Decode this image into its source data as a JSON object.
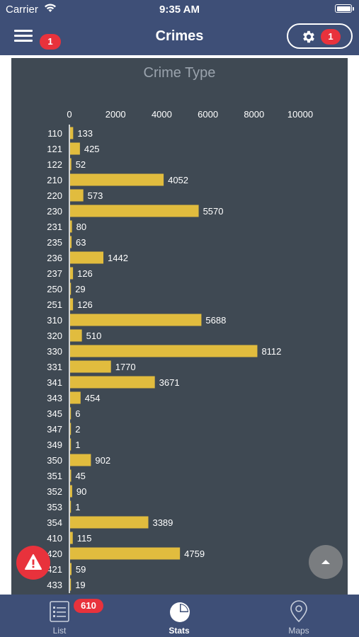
{
  "status_bar": {
    "carrier": "Carrier",
    "time": "9:35 AM"
  },
  "nav": {
    "title": "Crimes",
    "menu_badge": "1",
    "settings_badge": "1"
  },
  "icons": {
    "menu": "hamburger-menu-icon",
    "settings": "gear-icon",
    "alert": "warning-triangle-icon",
    "scroll_up": "chevron-up-icon",
    "list": "list-icon",
    "stats": "pie-chart-icon",
    "maps": "map-pin-icon"
  },
  "colors": {
    "nav_bg": "#3e4f77",
    "chart_bg": "#3f4953",
    "bar": "#e1bc3e",
    "badge": "#e8323c"
  },
  "chart_data": {
    "type": "bar",
    "orientation": "horizontal",
    "title": "Crime Type",
    "x_ticks": [
      "0",
      "2000",
      "4000",
      "6000",
      "8000",
      "10000"
    ],
    "xlim": [
      0,
      10000
    ],
    "axis_position": "top",
    "categories": [
      "110",
      "121",
      "122",
      "210",
      "220",
      "230",
      "231",
      "235",
      "236",
      "237",
      "250",
      "251",
      "310",
      "320",
      "330",
      "331",
      "341",
      "343",
      "345",
      "347",
      "349",
      "350",
      "351",
      "352",
      "353",
      "354",
      "410",
      "420",
      "421",
      "433"
    ],
    "values": [
      133,
      425,
      52,
      4052,
      573,
      5570,
      80,
      63,
      1442,
      126,
      29,
      126,
      5688,
      510,
      8112,
      1770,
      3671,
      454,
      6,
      2,
      1,
      902,
      45,
      90,
      1,
      3389,
      115,
      4759,
      59,
      19
    ]
  },
  "tabs": [
    {
      "label": "List",
      "badge": "610",
      "active": false
    },
    {
      "label": "Stats",
      "active": true
    },
    {
      "label": "Maps",
      "active": false
    }
  ]
}
